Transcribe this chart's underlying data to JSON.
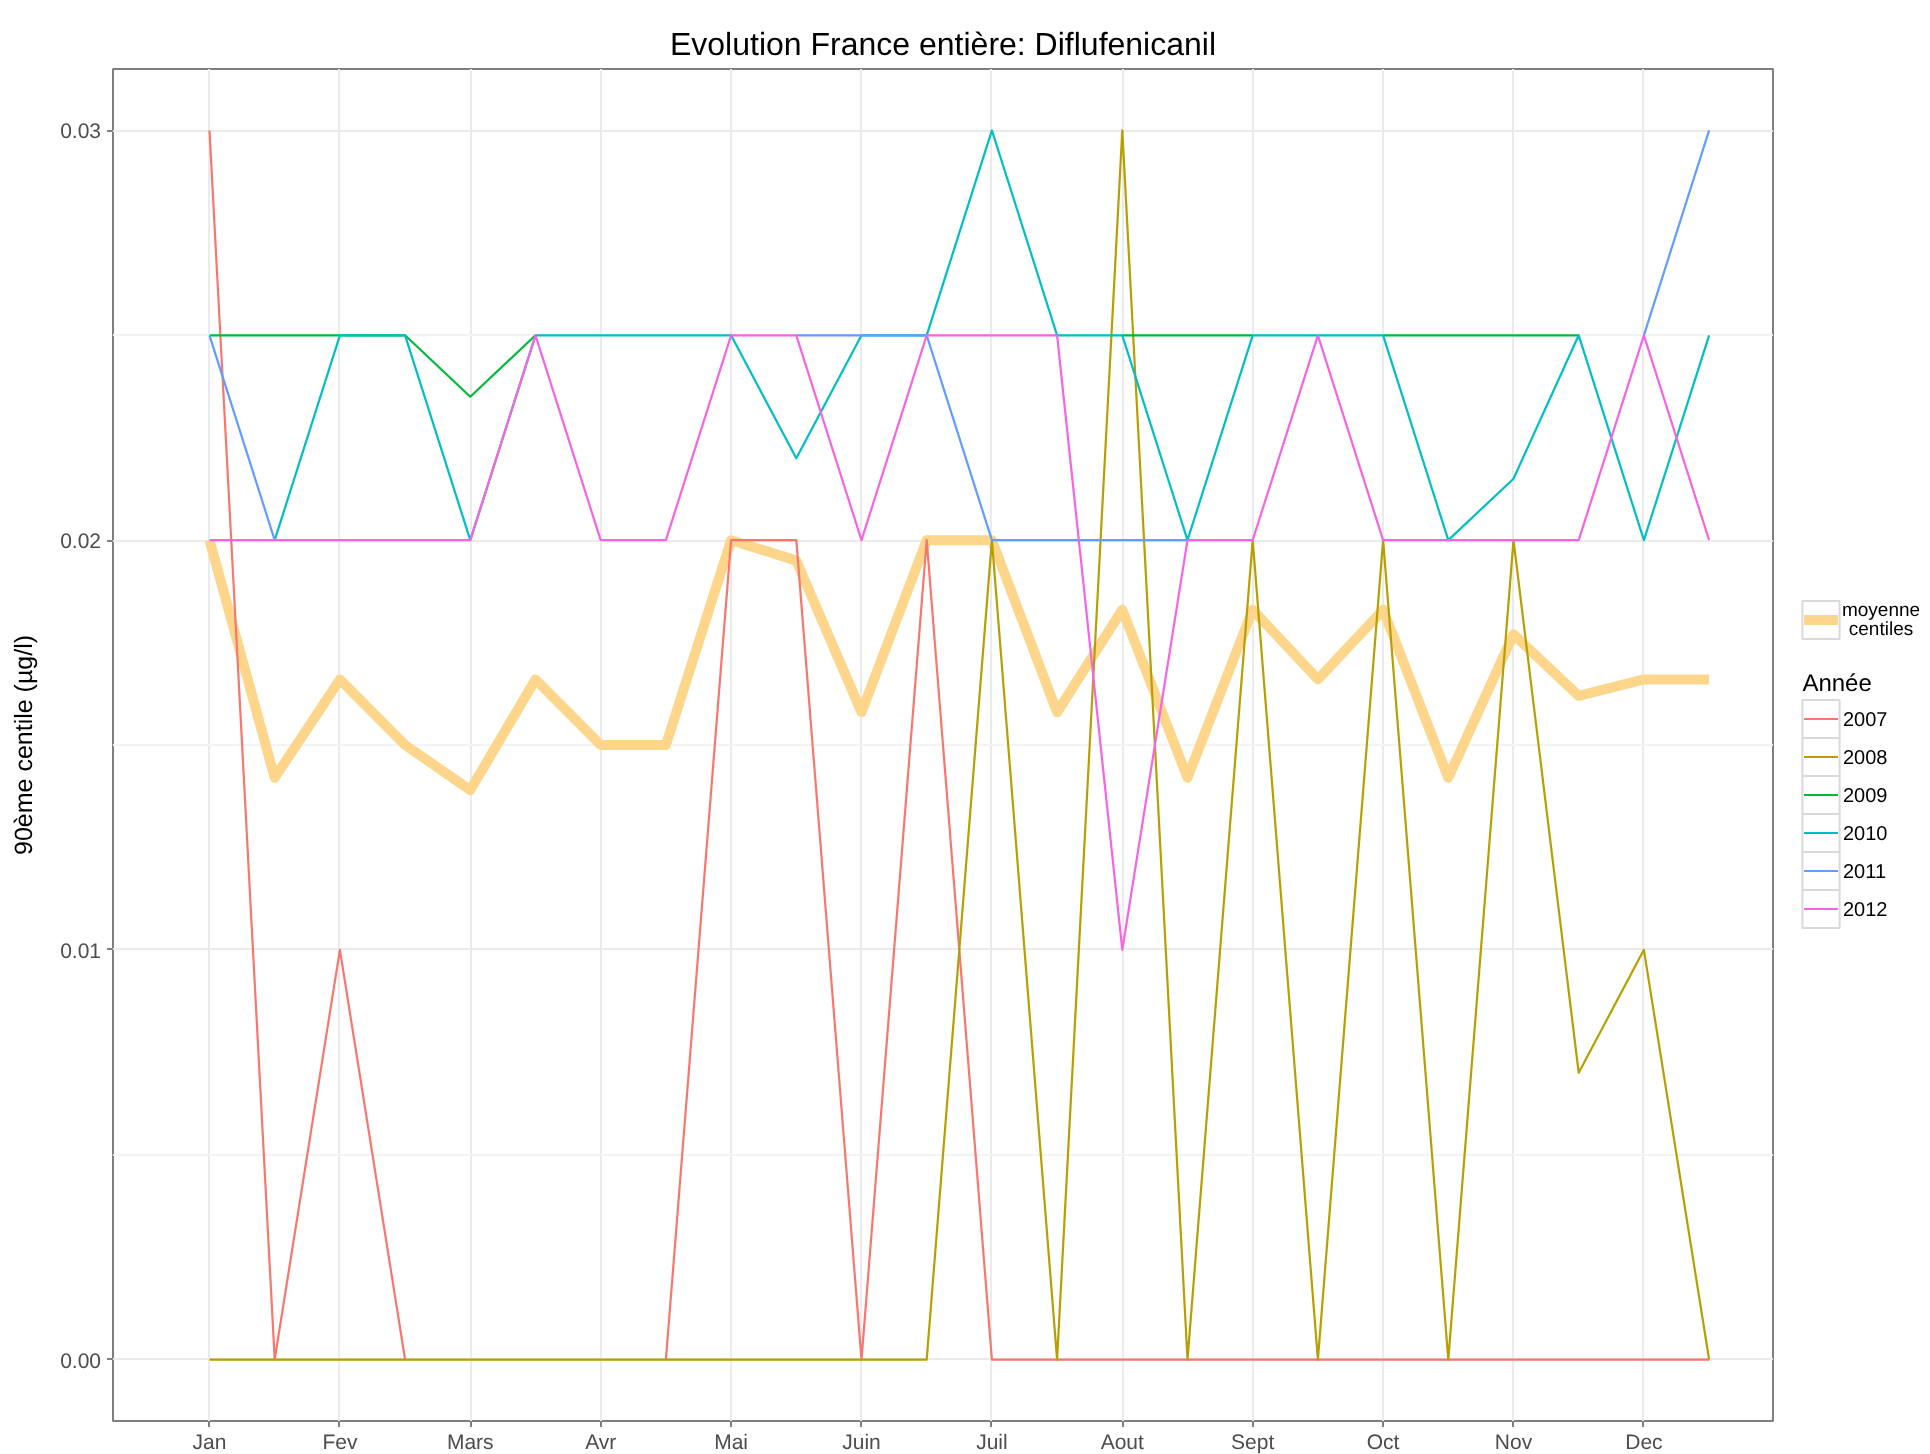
{
  "chart_data": {
    "type": "line",
    "title": "Evolution France entière: Diflufenicanil",
    "ylabel": "90ème centile (µg/l)",
    "legend_title": "Année",
    "legend": "right",
    "grid": true,
    "categories": [
      "Jan",
      null,
      "Fev",
      null,
      "Mars",
      null,
      "Avr",
      null,
      "Mai",
      null,
      "Juin",
      null,
      "Juil",
      null,
      "Aout",
      null,
      "Sept",
      null,
      "Oct",
      null,
      "Nov",
      null,
      "Dec",
      null
    ],
    "ylim": [
      -0.0015,
      0.0315
    ],
    "yticks": [
      {
        "value": 0,
        "label": "0.00"
      },
      {
        "value": 0.01,
        "label": "0.01"
      },
      {
        "value": 0.02,
        "label": "0.02"
      },
      {
        "value": 0.03,
        "label": "0.03"
      }
    ],
    "series": [
      {
        "name": "moyenne centiles",
        "color": "#fdd58b",
        "values": [
          0.02,
          0.0142,
          0.0166,
          0.015,
          0.0139,
          0.0166,
          0.015,
          0.015,
          0.02,
          0.0195,
          0.0158,
          0.02,
          0.02,
          0.0158,
          0.0183,
          0.0142,
          0.0183,
          0.0166,
          0.0183,
          0.0142,
          0.0177,
          0.0162,
          0.0166,
          0.0166
        ]
      },
      {
        "name": "2007",
        "color": "#f8766d",
        "values": [
          0.03,
          0,
          0.01,
          0,
          null,
          null,
          null,
          0,
          0.02,
          0.02,
          0,
          0.02,
          0,
          0,
          0,
          0,
          0,
          0,
          0,
          0,
          0,
          0,
          0,
          0
        ]
      },
      {
        "name": "2008",
        "color": "#b79f00",
        "values": [
          0,
          0,
          0,
          0,
          0,
          0,
          0,
          0,
          0,
          0,
          0,
          0,
          0.02,
          0,
          0.03,
          0,
          0.02,
          0,
          0.02,
          0,
          0.02,
          0.007,
          0.01,
          0
        ]
      },
      {
        "name": "2009",
        "color": "#00ba38",
        "values": [
          0.025,
          0.025,
          0.025,
          0.025,
          0.0235,
          0.025,
          null,
          null,
          null,
          null,
          null,
          null,
          null,
          null,
          0.025,
          0.025,
          0.025,
          null,
          0.025,
          0.025,
          0.025,
          0.025,
          null,
          null
        ]
      },
      {
        "name": "2010",
        "color": "#00bfc4",
        "values": [
          null,
          0.02,
          0.025,
          0.025,
          0.02,
          0.025,
          0.025,
          0.025,
          0.025,
          0.022,
          0.025,
          0.025,
          0.03,
          0.025,
          0.025,
          0.02,
          0.025,
          0.025,
          0.025,
          0.02,
          0.0215,
          0.025,
          0.02,
          0.025
        ]
      },
      {
        "name": "2011",
        "color": "#619cff",
        "values": [
          0.025,
          0.02,
          null,
          null,
          null,
          null,
          null,
          null,
          null,
          0.025,
          0.025,
          0.025,
          0.02,
          0.02,
          0.02,
          0.02,
          null,
          null,
          null,
          null,
          null,
          null,
          0.025,
          0.03
        ]
      },
      {
        "name": "2012",
        "color": "#f564e3",
        "values": [
          0.02,
          0.02,
          0.02,
          0.02,
          0.02,
          0.025,
          0.02,
          0.02,
          0.025,
          0.025,
          0.02,
          0.025,
          0.025,
          0.025,
          0.01,
          0.02,
          0.02,
          0.025,
          0.02,
          0.02,
          0.02,
          0.02,
          0.025,
          0.02
        ]
      }
    ]
  }
}
